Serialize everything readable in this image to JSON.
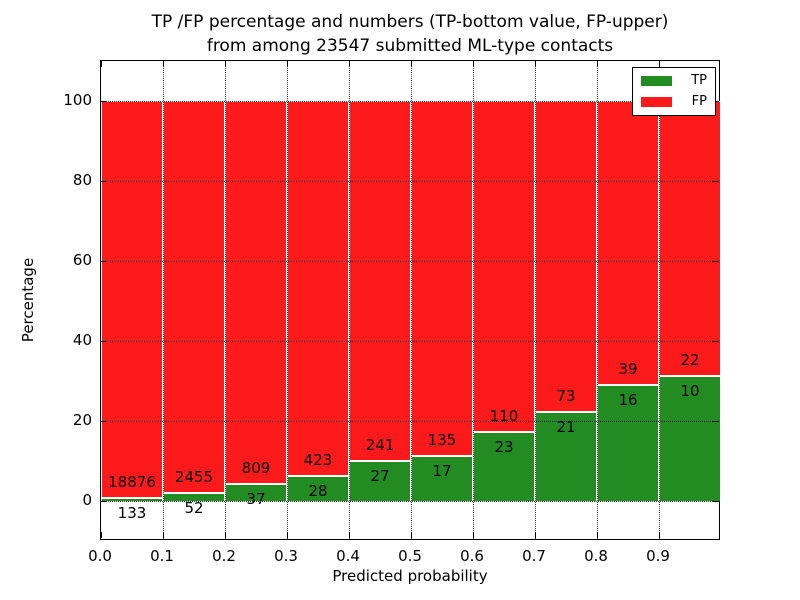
{
  "chart_data": {
    "type": "bar",
    "stacked": true,
    "normalized_to_percent": true,
    "title_line1": "TP /FP percentage and numbers (TP-bottom value, FP-upper)",
    "title_line2": "from among 23547 submitted ML-type contacts",
    "xlabel": "Predicted probability",
    "ylabel": "Percentage",
    "x_tick_labels": [
      "0.0",
      "0.1",
      "0.2",
      "0.3",
      "0.4",
      "0.5",
      "0.6",
      "0.7",
      "0.8",
      "0.9"
    ],
    "y_ticks": [
      0,
      20,
      40,
      60,
      80,
      100
    ],
    "xlim": [
      0.0,
      1.0
    ],
    "ylim": [
      -10,
      110
    ],
    "bin_width": 0.1,
    "grid": "dotted",
    "legend_location": "upper right",
    "series": [
      {
        "name": "TP",
        "color": "#228b22",
        "counts": [
          133,
          52,
          37,
          28,
          27,
          17,
          23,
          21,
          16,
          10
        ],
        "percent": [
          0.7,
          2.07,
          4.37,
          6.21,
          10.07,
          11.18,
          17.29,
          22.34,
          29.09,
          31.25
        ]
      },
      {
        "name": "FP",
        "color": "#fc1a1a",
        "counts": [
          18876,
          2455,
          809,
          423,
          241,
          135,
          110,
          73,
          39,
          22
        ],
        "percent": [
          99.3,
          97.93,
          95.63,
          93.79,
          89.93,
          88.82,
          82.71,
          77.66,
          70.91,
          68.75
        ]
      }
    ]
  }
}
